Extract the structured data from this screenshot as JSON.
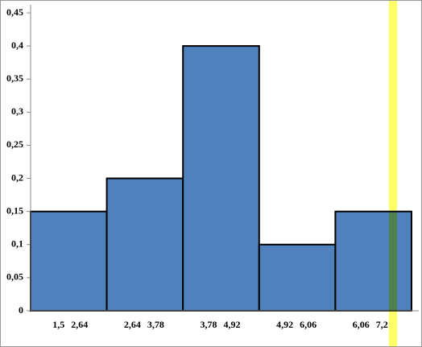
{
  "chart_data": {
    "type": "histogram",
    "bins": [
      {
        "value": 1.5,
        "label": "1,5"
      },
      {
        "value": 2.64,
        "label": "2,64"
      },
      {
        "value": 3.78,
        "label": "3,78"
      },
      {
        "value": 4.92,
        "label": "4,92"
      },
      {
        "value": 6.06,
        "label": "6,06"
      },
      {
        "value": 7.2,
        "label": "7,2"
      }
    ],
    "values": [
      0.15,
      0.2,
      0.4,
      0.1,
      0.15
    ],
    "color": "#4f81bd",
    "xlim": [
      1.5,
      7.2
    ],
    "ylim": [
      0,
      0.45
    ],
    "yticks": [
      0,
      {
        "value": 0.05,
        "label": "0,05"
      },
      {
        "value": 0.1,
        "label": "0,1"
      },
      {
        "value": 0.15,
        "label": "0,15"
      },
      {
        "value": 0.2,
        "label": "0,2"
      },
      {
        "value": 0.25,
        "label": "0,25"
      },
      {
        "value": 0.3,
        "label": "0,3"
      },
      {
        "value": 0.35,
        "label": "0,35"
      },
      {
        "value": 0.4,
        "label": "0,4"
      },
      {
        "value": 0.45,
        "label": "0,45"
      }
    ],
    "grid": false
  }
}
